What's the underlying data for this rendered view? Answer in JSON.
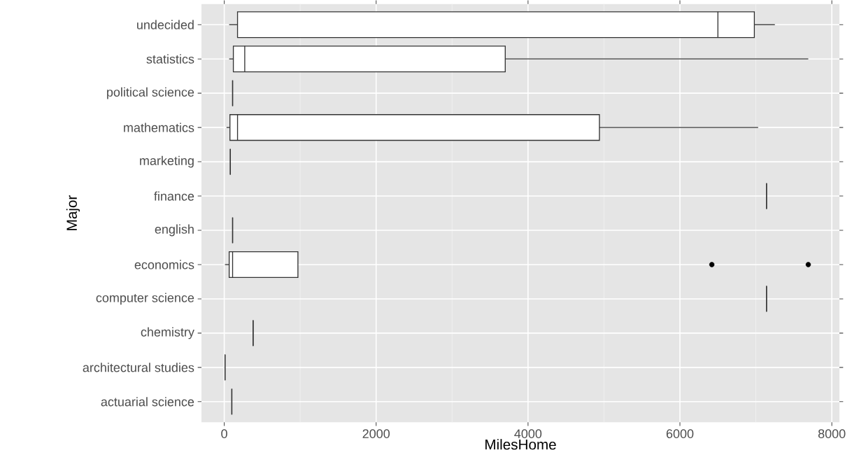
{
  "chart_data": {
    "type": "box",
    "orientation": "horizontal",
    "xlabel": "MilesHome",
    "ylabel": "Major",
    "categories": [
      "undecided",
      "statistics",
      "political science",
      "mathematics",
      "marketing",
      "finance",
      "english",
      "economics",
      "computer science",
      "chemistry",
      "architectural studies",
      "actuarial science"
    ],
    "boxes": [
      {
        "low": 65,
        "q1": 175,
        "median": 6500,
        "q3": 6980,
        "high": 7250
      },
      {
        "low": 65,
        "q1": 120,
        "median": 270,
        "q3": 3700,
        "high": 7690
      },
      {
        "low": 110,
        "q1": 110,
        "median": 110,
        "q3": 110,
        "high": 110
      },
      {
        "low": 30,
        "q1": 75,
        "median": 175,
        "q3": 4940,
        "high": 7030
      },
      {
        "low": 80,
        "q1": 80,
        "median": 80,
        "q3": 80,
        "high": 80
      },
      {
        "low": 7140,
        "q1": 7140,
        "median": 7140,
        "q3": 7140,
        "high": 7140
      },
      {
        "low": 110,
        "q1": 110,
        "median": 110,
        "q3": 110,
        "high": 110
      },
      {
        "low": 10,
        "q1": 65,
        "median": 110,
        "q3": 970,
        "high": 970,
        "outliers": [
          6420,
          7690
        ]
      },
      {
        "low": 7140,
        "q1": 7140,
        "median": 7140,
        "q3": 7140,
        "high": 7140
      },
      {
        "low": 380,
        "q1": 380,
        "median": 380,
        "q3": 380,
        "high": 380
      },
      {
        "low": 10,
        "q1": 10,
        "median": 10,
        "q3": 10,
        "high": 10
      },
      {
        "low": 100,
        "q1": 100,
        "median": 100,
        "q3": 100,
        "high": 100
      }
    ],
    "xlim": [
      -300,
      8100
    ],
    "xticks": [
      0,
      2000,
      4000,
      6000,
      8000
    ],
    "grid": true
  }
}
